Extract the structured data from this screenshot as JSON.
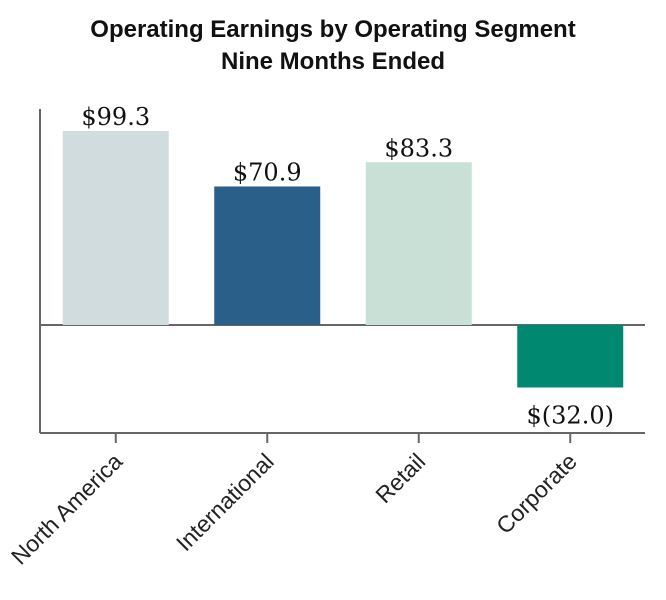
{
  "chart_data": {
    "type": "bar",
    "title": [
      "Operating Earnings by Operating Segment",
      "Nine Months Ended"
    ],
    "xlabel": "",
    "ylabel": "",
    "categories": [
      "North America",
      "International",
      "Retail",
      "Corporate"
    ],
    "values": [
      99.3,
      70.9,
      83.3,
      -32.0
    ],
    "data_labels": [
      "$99.3",
      "$70.9",
      "$83.3",
      "$(32.0)"
    ],
    "colors": [
      "#d1dcde",
      "#2a5f8a",
      "#c8e0d6",
      "#008970"
    ],
    "ylim": [
      -55,
      115
    ],
    "grid": false,
    "legend": "none"
  }
}
